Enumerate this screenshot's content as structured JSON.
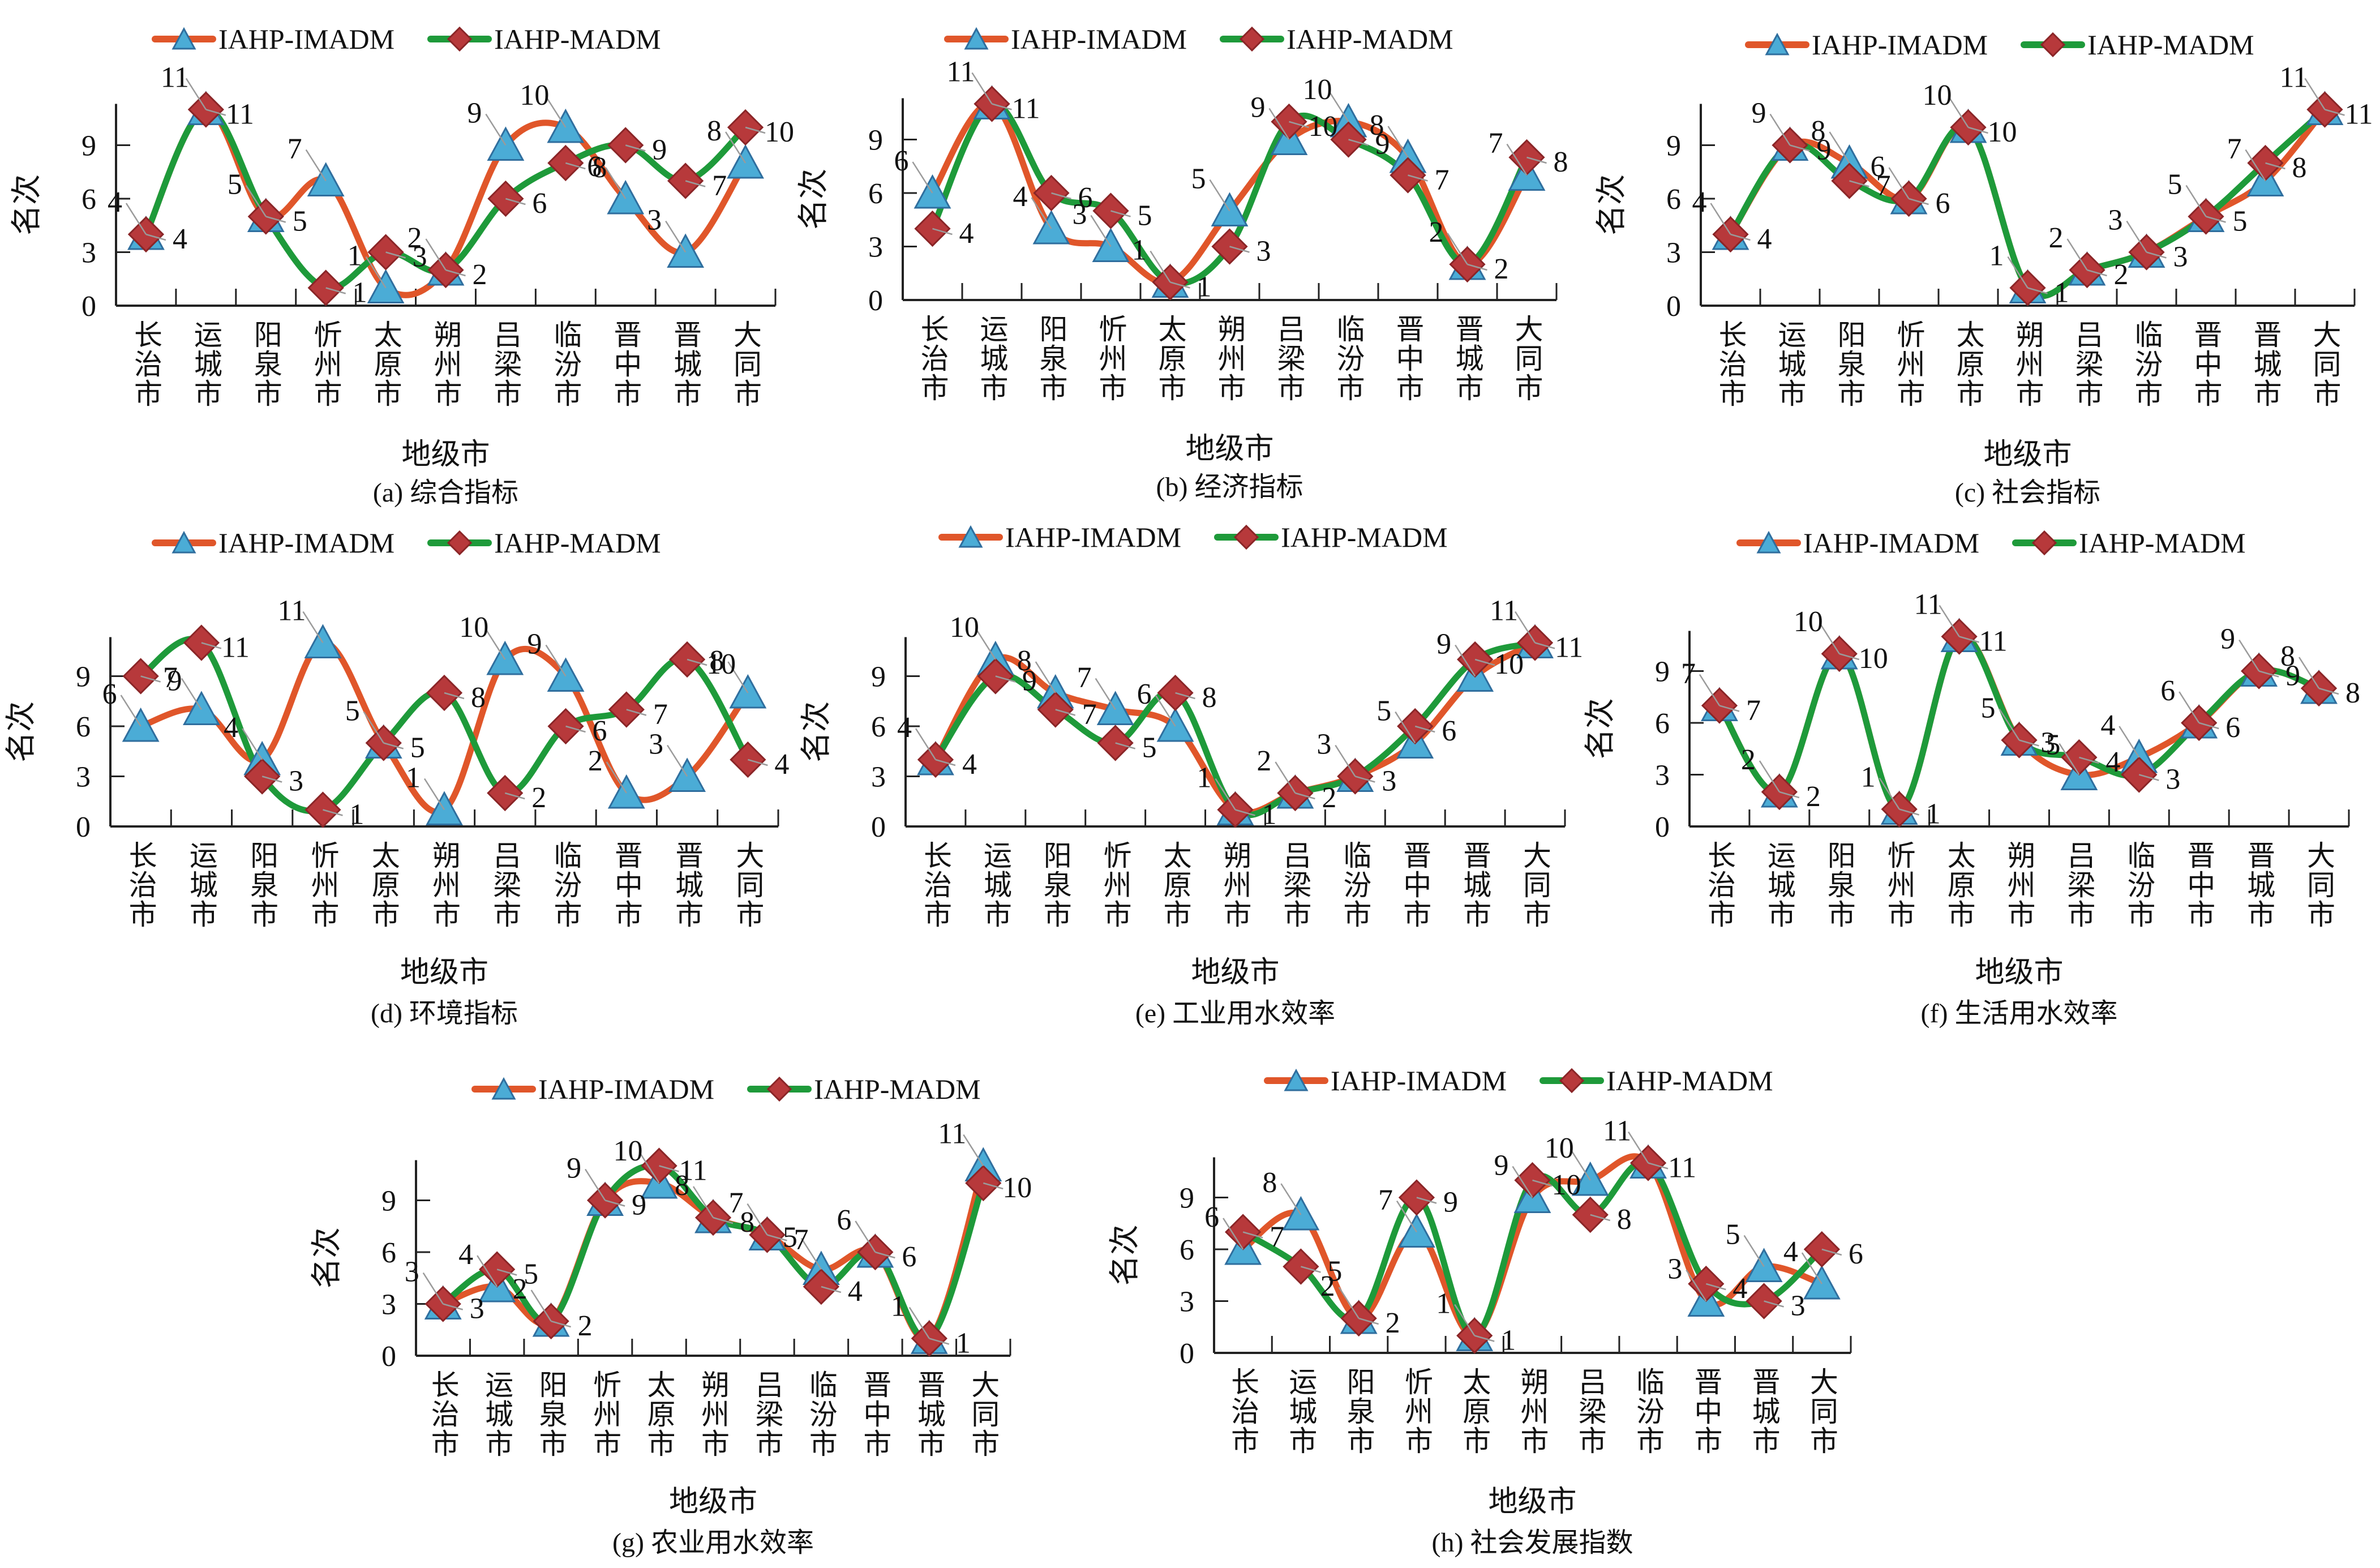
{
  "figure": {
    "legend": {
      "series_a": "IAHP-IMADM",
      "series_b": "IAHP-MADM"
    },
    "ylabel": "名次",
    "xlabel": "地级市",
    "colors": {
      "imadm_line": "#E0562A",
      "imadm_marker": "#4BACD6",
      "imadm_marker_edge": "#2F6E9E",
      "madm_line": "#1E9A3A",
      "madm_marker": "#B7393B",
      "madm_marker_edge": "#8A2527"
    }
  },
  "chart_data": [
    {
      "id": "a",
      "type": "line",
      "title": "(a) 综合指标",
      "xlabel": "地级市",
      "ylabel": "名次",
      "categories": [
        "长治市",
        "运城市",
        "阳泉市",
        "忻州市",
        "太原市",
        "朔州市",
        "吕梁市",
        "临汾市",
        "晋中市",
        "晋城市",
        "大同市"
      ],
      "yticks": [
        0,
        3,
        6,
        9
      ],
      "ylim": [
        0,
        11
      ],
      "legend": "top",
      "series": [
        {
          "name": "IAHP-IMADM",
          "marker": "triangle",
          "values": [
            4,
            11,
            5,
            7,
            1,
            2,
            9,
            10,
            6,
            3,
            8
          ]
        },
        {
          "name": "IAHP-MADM",
          "marker": "diamond",
          "values": [
            4,
            11,
            5,
            1,
            3,
            2,
            6,
            8,
            9,
            7,
            10
          ]
        }
      ]
    },
    {
      "id": "b",
      "type": "line",
      "title": "(b) 经济指标",
      "xlabel": "地级市",
      "ylabel": "名次",
      "categories": [
        "长治市",
        "运城市",
        "阳泉市",
        "忻州市",
        "太原市",
        "朔州市",
        "吕梁市",
        "临汾市",
        "晋中市",
        "晋城市",
        "大同市"
      ],
      "yticks": [
        0,
        3,
        6,
        9
      ],
      "ylim": [
        0,
        11
      ],
      "legend": "top",
      "series": [
        {
          "name": "IAHP-IMADM",
          "marker": "triangle",
          "values": [
            6,
            11,
            4,
            3,
            1,
            5,
            9,
            10,
            8,
            2,
            7
          ]
        },
        {
          "name": "IAHP-MADM",
          "marker": "diamond",
          "values": [
            4,
            11,
            6,
            5,
            1,
            3,
            10,
            9,
            7,
            2,
            8
          ]
        }
      ]
    },
    {
      "id": "c",
      "type": "line",
      "title": "(c) 社会指标",
      "xlabel": "地级市",
      "ylabel": "名次",
      "categories": [
        "长治市",
        "运城市",
        "阳泉市",
        "忻州市",
        "太原市",
        "朔州市",
        "吕梁市",
        "临汾市",
        "晋中市",
        "晋城市",
        "大同市"
      ],
      "yticks": [
        0,
        3,
        6,
        9
      ],
      "ylim": [
        0,
        11
      ],
      "legend": "top",
      "series": [
        {
          "name": "IAHP-IMADM",
          "marker": "triangle",
          "values": [
            4,
            9,
            8,
            6,
            10,
            1,
            2,
            3,
            5,
            7,
            11
          ]
        },
        {
          "name": "IAHP-MADM",
          "marker": "diamond",
          "values": [
            4,
            9,
            7,
            6,
            10,
            1,
            2,
            3,
            5,
            8,
            11
          ]
        }
      ]
    },
    {
      "id": "d",
      "type": "line",
      "title": "(d) 环境指标",
      "xlabel": "地级市",
      "ylabel": "名次",
      "categories": [
        "长治市",
        "运城市",
        "阳泉市",
        "忻州市",
        "太原市",
        "朔州市",
        "吕梁市",
        "临汾市",
        "晋中市",
        "晋城市",
        "大同市"
      ],
      "yticks": [
        0,
        3,
        6,
        9
      ],
      "ylim": [
        0,
        11
      ],
      "legend": "top",
      "series": [
        {
          "name": "IAHP-IMADM",
          "marker": "triangle",
          "values": [
            6,
            7,
            4,
            11,
            5,
            1,
            10,
            9,
            2,
            3,
            8
          ]
        },
        {
          "name": "IAHP-MADM",
          "marker": "diamond",
          "values": [
            9,
            11,
            3,
            1,
            5,
            8,
            2,
            6,
            7,
            10,
            4
          ]
        }
      ]
    },
    {
      "id": "e",
      "type": "line",
      "title": "(e) 工业用水效率",
      "xlabel": "地级市",
      "ylabel": "名次",
      "categories": [
        "长治市",
        "运城市",
        "阳泉市",
        "忻州市",
        "太原市",
        "朔州市",
        "吕梁市",
        "临汾市",
        "晋中市",
        "晋城市",
        "大同市"
      ],
      "yticks": [
        0,
        3,
        6,
        9
      ],
      "ylim": [
        0,
        11
      ],
      "legend": "top",
      "series": [
        {
          "name": "IAHP-IMADM",
          "marker": "triangle",
          "values": [
            4,
            10,
            8,
            7,
            6,
            1,
            2,
            3,
            5,
            9,
            11
          ]
        },
        {
          "name": "IAHP-MADM",
          "marker": "diamond",
          "values": [
            4,
            9,
            7,
            5,
            8,
            1,
            2,
            3,
            6,
            10,
            11
          ]
        }
      ]
    },
    {
      "id": "f",
      "type": "line",
      "title": "(f) 生活用水效率",
      "xlabel": "地级市",
      "ylabel": "名次",
      "categories": [
        "长治市",
        "运城市",
        "阳泉市",
        "忻州市",
        "太原市",
        "朔州市",
        "吕梁市",
        "临汾市",
        "晋中市",
        "晋城市",
        "大同市"
      ],
      "yticks": [
        0,
        3,
        6,
        9
      ],
      "ylim": [
        0,
        11
      ],
      "legend": "top",
      "series": [
        {
          "name": "IAHP-IMADM",
          "marker": "triangle",
          "values": [
            7,
            2,
            10,
            1,
            11,
            5,
            3,
            4,
            6,
            9,
            8
          ]
        },
        {
          "name": "IAHP-MADM",
          "marker": "diamond",
          "values": [
            7,
            2,
            10,
            1,
            11,
            5,
            4,
            3,
            6,
            9,
            8
          ]
        }
      ]
    },
    {
      "id": "g",
      "type": "line",
      "title": "(g) 农业用水效率",
      "xlabel": "地级市",
      "ylabel": "名次",
      "categories": [
        "长治市",
        "运城市",
        "阳泉市",
        "忻州市",
        "太原市",
        "朔州市",
        "吕梁市",
        "临汾市",
        "晋中市",
        "晋城市",
        "大同市"
      ],
      "yticks": [
        0,
        3,
        6,
        9
      ],
      "ylim": [
        0,
        11
      ],
      "legend": "top",
      "series": [
        {
          "name": "IAHP-IMADM",
          "marker": "triangle",
          "values": [
            3,
            4,
            2,
            9,
            10,
            8,
            7,
            5,
            6,
            1,
            11
          ]
        },
        {
          "name": "IAHP-MADM",
          "marker": "diamond",
          "values": [
            3,
            5,
            2,
            9,
            11,
            8,
            7,
            4,
            6,
            1,
            10
          ]
        }
      ]
    },
    {
      "id": "h",
      "type": "line",
      "title": "(h) 社会发展指数",
      "xlabel": "地级市",
      "ylabel": "名次",
      "categories": [
        "长治市",
        "运城市",
        "阳泉市",
        "忻州市",
        "太原市",
        "朔州市",
        "吕梁市",
        "临汾市",
        "晋中市",
        "晋城市",
        "大同市"
      ],
      "yticks": [
        0,
        3,
        6,
        9
      ],
      "ylim": [
        0,
        11
      ],
      "legend": "top",
      "series": [
        {
          "name": "IAHP-IMADM",
          "marker": "triangle",
          "values": [
            6,
            8,
            2,
            7,
            1,
            9,
            10,
            11,
            3,
            5,
            4
          ]
        },
        {
          "name": "IAHP-MADM",
          "marker": "diamond",
          "values": [
            7,
            5,
            2,
            9,
            1,
            10,
            8,
            11,
            4,
            3,
            6
          ]
        }
      ]
    }
  ]
}
